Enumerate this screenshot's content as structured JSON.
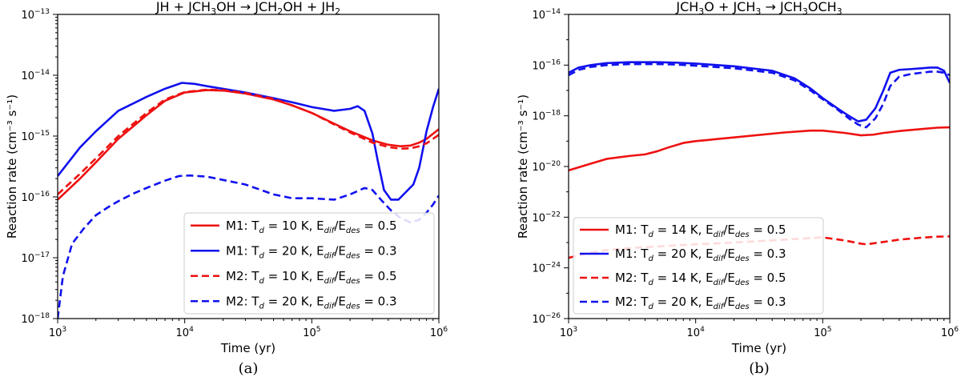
{
  "chart_data": [
    {
      "type": "line",
      "panel": "a",
      "caption": "(a)",
      "title_parts": [
        "JH + JCH",
        "3",
        "OH  → JCH",
        "2",
        "OH + JH",
        "2"
      ],
      "xlabel": "Time (yr)",
      "ylabel": "Reaction rate (cm⁻³ s⁻¹)",
      "xscale": "log",
      "yscale": "log",
      "xlim": [
        1000,
        1000000
      ],
      "ylim": [
        1e-18,
        1e-13
      ],
      "xticks": [
        {
          "value": 1000,
          "base": "10",
          "exp": "3"
        },
        {
          "value": 10000,
          "base": "10",
          "exp": "4"
        },
        {
          "value": 100000,
          "base": "10",
          "exp": "5"
        },
        {
          "value": 1000000,
          "base": "10",
          "exp": "6"
        }
      ],
      "yticks": [
        {
          "value": 1e-18,
          "base": "10",
          "exp": "−18"
        },
        {
          "value": 1e-17,
          "base": "10",
          "exp": "−17"
        },
        {
          "value": 1e-16,
          "base": "10",
          "exp": "−16"
        },
        {
          "value": 1e-15,
          "base": "10",
          "exp": "−15"
        },
        {
          "value": 1e-14,
          "base": "10",
          "exp": "−14"
        },
        {
          "value": 1e-13,
          "base": "10",
          "exp": "−13"
        }
      ],
      "series": [
        {
          "name": "M1: T_d = 10 K, E_dif/E_des = 0.5",
          "model": "M1",
          "T": "10",
          "ratio": "0.5",
          "color": "#ee1111",
          "dash": "solid",
          "x": [
            1000,
            1500,
            2000,
            3000,
            5000,
            7000,
            10000,
            15000,
            20000,
            30000,
            50000,
            70000,
            100000,
            150000,
            200000,
            300000,
            400000,
            500000,
            600000,
            700000,
            800000,
            1000000
          ],
          "y": [
            9e-17,
            2e-16,
            3.7e-16,
            9e-16,
            2.2e-15,
            3.8e-15,
            5.2e-15,
            5.7e-15,
            5.6e-15,
            5e-15,
            4e-15,
            3.2e-15,
            2.4e-15,
            1.6e-15,
            1.2e-15,
            8.5e-16,
            7.2e-16,
            6.8e-16,
            7e-16,
            7.8e-16,
            9e-16,
            1.3e-15
          ]
        },
        {
          "name": "M1: T_d = 20 K, E_dif/E_des = 0.3",
          "model": "M1",
          "T": "20",
          "ratio": "0.3",
          "color": "#1111ee",
          "dash": "solid",
          "x": [
            1000,
            1500,
            2000,
            3000,
            5000,
            7000,
            9500,
            12000,
            15000,
            20000,
            30000,
            50000,
            70000,
            100000,
            150000,
            200000,
            230000,
            260000,
            300000,
            330000,
            370000,
            420000,
            480000,
            550000,
            630000,
            700000,
            800000,
            900000,
            1000000
          ],
          "y": [
            2.2e-16,
            6.5e-16,
            1.2e-15,
            2.6e-15,
            4.4e-15,
            6e-15,
            7.5e-15,
            7.2e-15,
            6.6e-15,
            6e-15,
            5.2e-15,
            4.2e-15,
            3.6e-15,
            3e-15,
            2.6e-15,
            2.8e-15,
            3.1e-15,
            2.6e-15,
            1.1e-15,
            4e-16,
            1.3e-16,
            9e-17,
            9e-17,
            1.2e-16,
            1.6e-16,
            3e-16,
            1.2e-15,
            3e-15,
            6e-15
          ]
        },
        {
          "name": "M2: T_d = 10 K, E_dif/E_des = 0.5",
          "model": "M2",
          "T": "10",
          "ratio": "0.5",
          "color": "#ee1111",
          "dash": "dashed",
          "x": [
            1000,
            1500,
            2000,
            3000,
            5000,
            7000,
            10000,
            15000,
            20000,
            30000,
            50000,
            70000,
            100000,
            150000,
            200000,
            300000,
            400000,
            500000,
            600000,
            700000,
            800000,
            1000000
          ],
          "y": [
            1.1e-16,
            2.4e-16,
            4.3e-16,
            1e-15,
            2.4e-15,
            4e-15,
            5.3e-15,
            5.8e-15,
            5.7e-15,
            5.1e-15,
            4.1e-15,
            3.2e-15,
            2.4e-15,
            1.55e-15,
            1.15e-15,
            7.8e-16,
            6.6e-16,
            6.2e-16,
            6.3e-16,
            6.8e-16,
            7.6e-16,
            1.05e-15
          ]
        },
        {
          "name": "M2: T_d = 20 K, E_dif/E_des = 0.3",
          "model": "M2",
          "T": "20",
          "ratio": "0.3",
          "color": "#1111ee",
          "dash": "dashed",
          "x": [
            1000,
            1100,
            1300,
            1600,
            2000,
            2500,
            3000,
            4000,
            5000,
            7000,
            9000,
            11000,
            15000,
            20000,
            30000,
            50000,
            70000,
            100000,
            150000,
            200000,
            260000,
            300000,
            350000,
            420000,
            500000,
            600000,
            700000,
            800000,
            900000,
            1000000
          ],
          "y": [
            1e-18,
            5e-18,
            1.7e-17,
            3e-17,
            5e-17,
            6.8e-17,
            8.5e-17,
            1.15e-16,
            1.4e-16,
            1.85e-16,
            2.2e-16,
            2.25e-16,
            2.15e-16,
            1.9e-16,
            1.6e-16,
            1.1e-16,
            9.5e-17,
            9.5e-17,
            9e-17,
            1.1e-16,
            1.4e-16,
            1.3e-16,
            9e-17,
            6e-17,
            4.5e-17,
            3.8e-17,
            4.2e-17,
            5.5e-17,
            7.5e-17,
            1.05e-16
          ]
        }
      ],
      "legend_position": "lower-right"
    },
    {
      "type": "line",
      "panel": "b",
      "caption": "(b)",
      "title_parts": [
        "JCH",
        "3",
        "O + JCH",
        "3",
        " → JCH",
        "3",
        "OCH",
        "3"
      ],
      "xlabel": "Time (yr)",
      "ylabel": "Reaction rate (cm⁻³ s⁻¹)",
      "xscale": "log",
      "yscale": "log",
      "xlim": [
        1000,
        1000000
      ],
      "ylim": [
        1e-26,
        1e-14
      ],
      "xticks": [
        {
          "value": 1000,
          "base": "10",
          "exp": "3"
        },
        {
          "value": 10000,
          "base": "10",
          "exp": "4"
        },
        {
          "value": 100000,
          "base": "10",
          "exp": "5"
        },
        {
          "value": 1000000,
          "base": "10",
          "exp": "6"
        }
      ],
      "yticks": [
        {
          "value": 1e-26,
          "base": "10",
          "exp": "−26"
        },
        {
          "value": 1e-24,
          "base": "10",
          "exp": "−24"
        },
        {
          "value": 1e-22,
          "base": "10",
          "exp": "−22"
        },
        {
          "value": 1e-20,
          "base": "10",
          "exp": "−20"
        },
        {
          "value": 1e-18,
          "base": "10",
          "exp": "−18"
        },
        {
          "value": 1e-16,
          "base": "10",
          "exp": "−16"
        },
        {
          "value": 1e-14,
          "base": "10",
          "exp": "−14"
        }
      ],
      "series": [
        {
          "name": "M1: T_d = 14 K, E_dif/E_des = 0.5",
          "model": "M1",
          "T": "14",
          "ratio": "0.5",
          "color": "#ee1111",
          "dash": "solid",
          "x": [
            1000,
            1500,
            2000,
            3000,
            4000,
            5000,
            6000,
            8000,
            10000,
            20000,
            50000,
            80000,
            100000,
            150000,
            200000,
            250000,
            300000,
            400000,
            600000,
            800000,
            1000000
          ],
          "y": [
            7e-21,
            1.3e-20,
            2e-20,
            2.6e-20,
            3e-20,
            4e-20,
            5.5e-20,
            8.5e-20,
            1e-19,
            1.4e-19,
            2.2e-19,
            2.6e-19,
            2.6e-19,
            2.1e-19,
            1.7e-19,
            1.8e-19,
            2.1e-19,
            2.5e-19,
            3e-19,
            3.4e-19,
            3.5e-19
          ]
        },
        {
          "name": "M1: T_d = 20 K, E_dif/E_des = 0.3",
          "model": "M1",
          "T": "20",
          "ratio": "0.3",
          "color": "#1111ee",
          "dash": "solid",
          "x": [
            1000,
            1200,
            1500,
            2000,
            3000,
            5000,
            7000,
            10000,
            20000,
            40000,
            60000,
            80000,
            100000,
            130000,
            160000,
            190000,
            220000,
            260000,
            300000,
            340000,
            400000,
            500000,
            600000,
            700000,
            800000,
            900000,
            1000000
          ],
          "y": [
            5e-17,
            8e-17,
            1e-16,
            1.2e-16,
            1.3e-16,
            1.3e-16,
            1.25e-16,
            1.15e-16,
            9e-17,
            6e-17,
            3e-17,
            1.2e-17,
            5e-18,
            2e-18,
            1e-18,
            6e-19,
            7e-19,
            2e-18,
            1e-17,
            5e-17,
            6.5e-17,
            7e-17,
            7.5e-17,
            8e-17,
            8e-17,
            6e-17,
            2e-17
          ]
        },
        {
          "name": "M2: T_d = 14 K, E_dif/E_des = 0.5",
          "model": "M2",
          "T": "14",
          "ratio": "0.5",
          "color": "#ee1111",
          "dash": "dashed",
          "x": [
            1000,
            1500,
            2000,
            3000,
            5000,
            8000,
            10000,
            20000,
            50000,
            100000,
            150000,
            200000,
            220000,
            300000,
            400000,
            600000,
            800000,
            1000000
          ],
          "y": [
            2.5e-24,
            4e-24,
            5e-24,
            6e-24,
            7e-24,
            8e-24,
            8.5e-24,
            1e-23,
            1.3e-23,
            1.6e-23,
            1.2e-23,
            9e-24,
            8.5e-24,
            1.05e-23,
            1.3e-23,
            1.55e-23,
            1.7e-23,
            1.75e-23
          ]
        },
        {
          "name": "M2: T_d = 20 K, E_dif/E_des = 0.3",
          "model": "M2",
          "T": "20",
          "ratio": "0.3",
          "color": "#1111ee",
          "dash": "dashed",
          "x": [
            1000,
            1200,
            1500,
            2000,
            3000,
            5000,
            7000,
            10000,
            20000,
            40000,
            60000,
            80000,
            100000,
            130000,
            160000,
            190000,
            220000,
            260000,
            300000,
            340000,
            400000,
            500000,
            600000,
            700000,
            800000,
            900000,
            1000000
          ],
          "y": [
            4e-17,
            6.5e-17,
            8.5e-17,
            1e-16,
            1.1e-16,
            1.1e-16,
            1.05e-16,
            9.5e-17,
            7.5e-17,
            5e-17,
            2.5e-17,
            1e-17,
            4.5e-18,
            1.8e-18,
            8e-19,
            4.5e-19,
            3.5e-19,
            8e-19,
            3e-18,
            1.5e-17,
            3.5e-17,
            4.5e-17,
            5e-17,
            5.5e-17,
            5.5e-17,
            5e-17,
            4e-17
          ]
        }
      ],
      "legend_position": "lower-right"
    }
  ]
}
